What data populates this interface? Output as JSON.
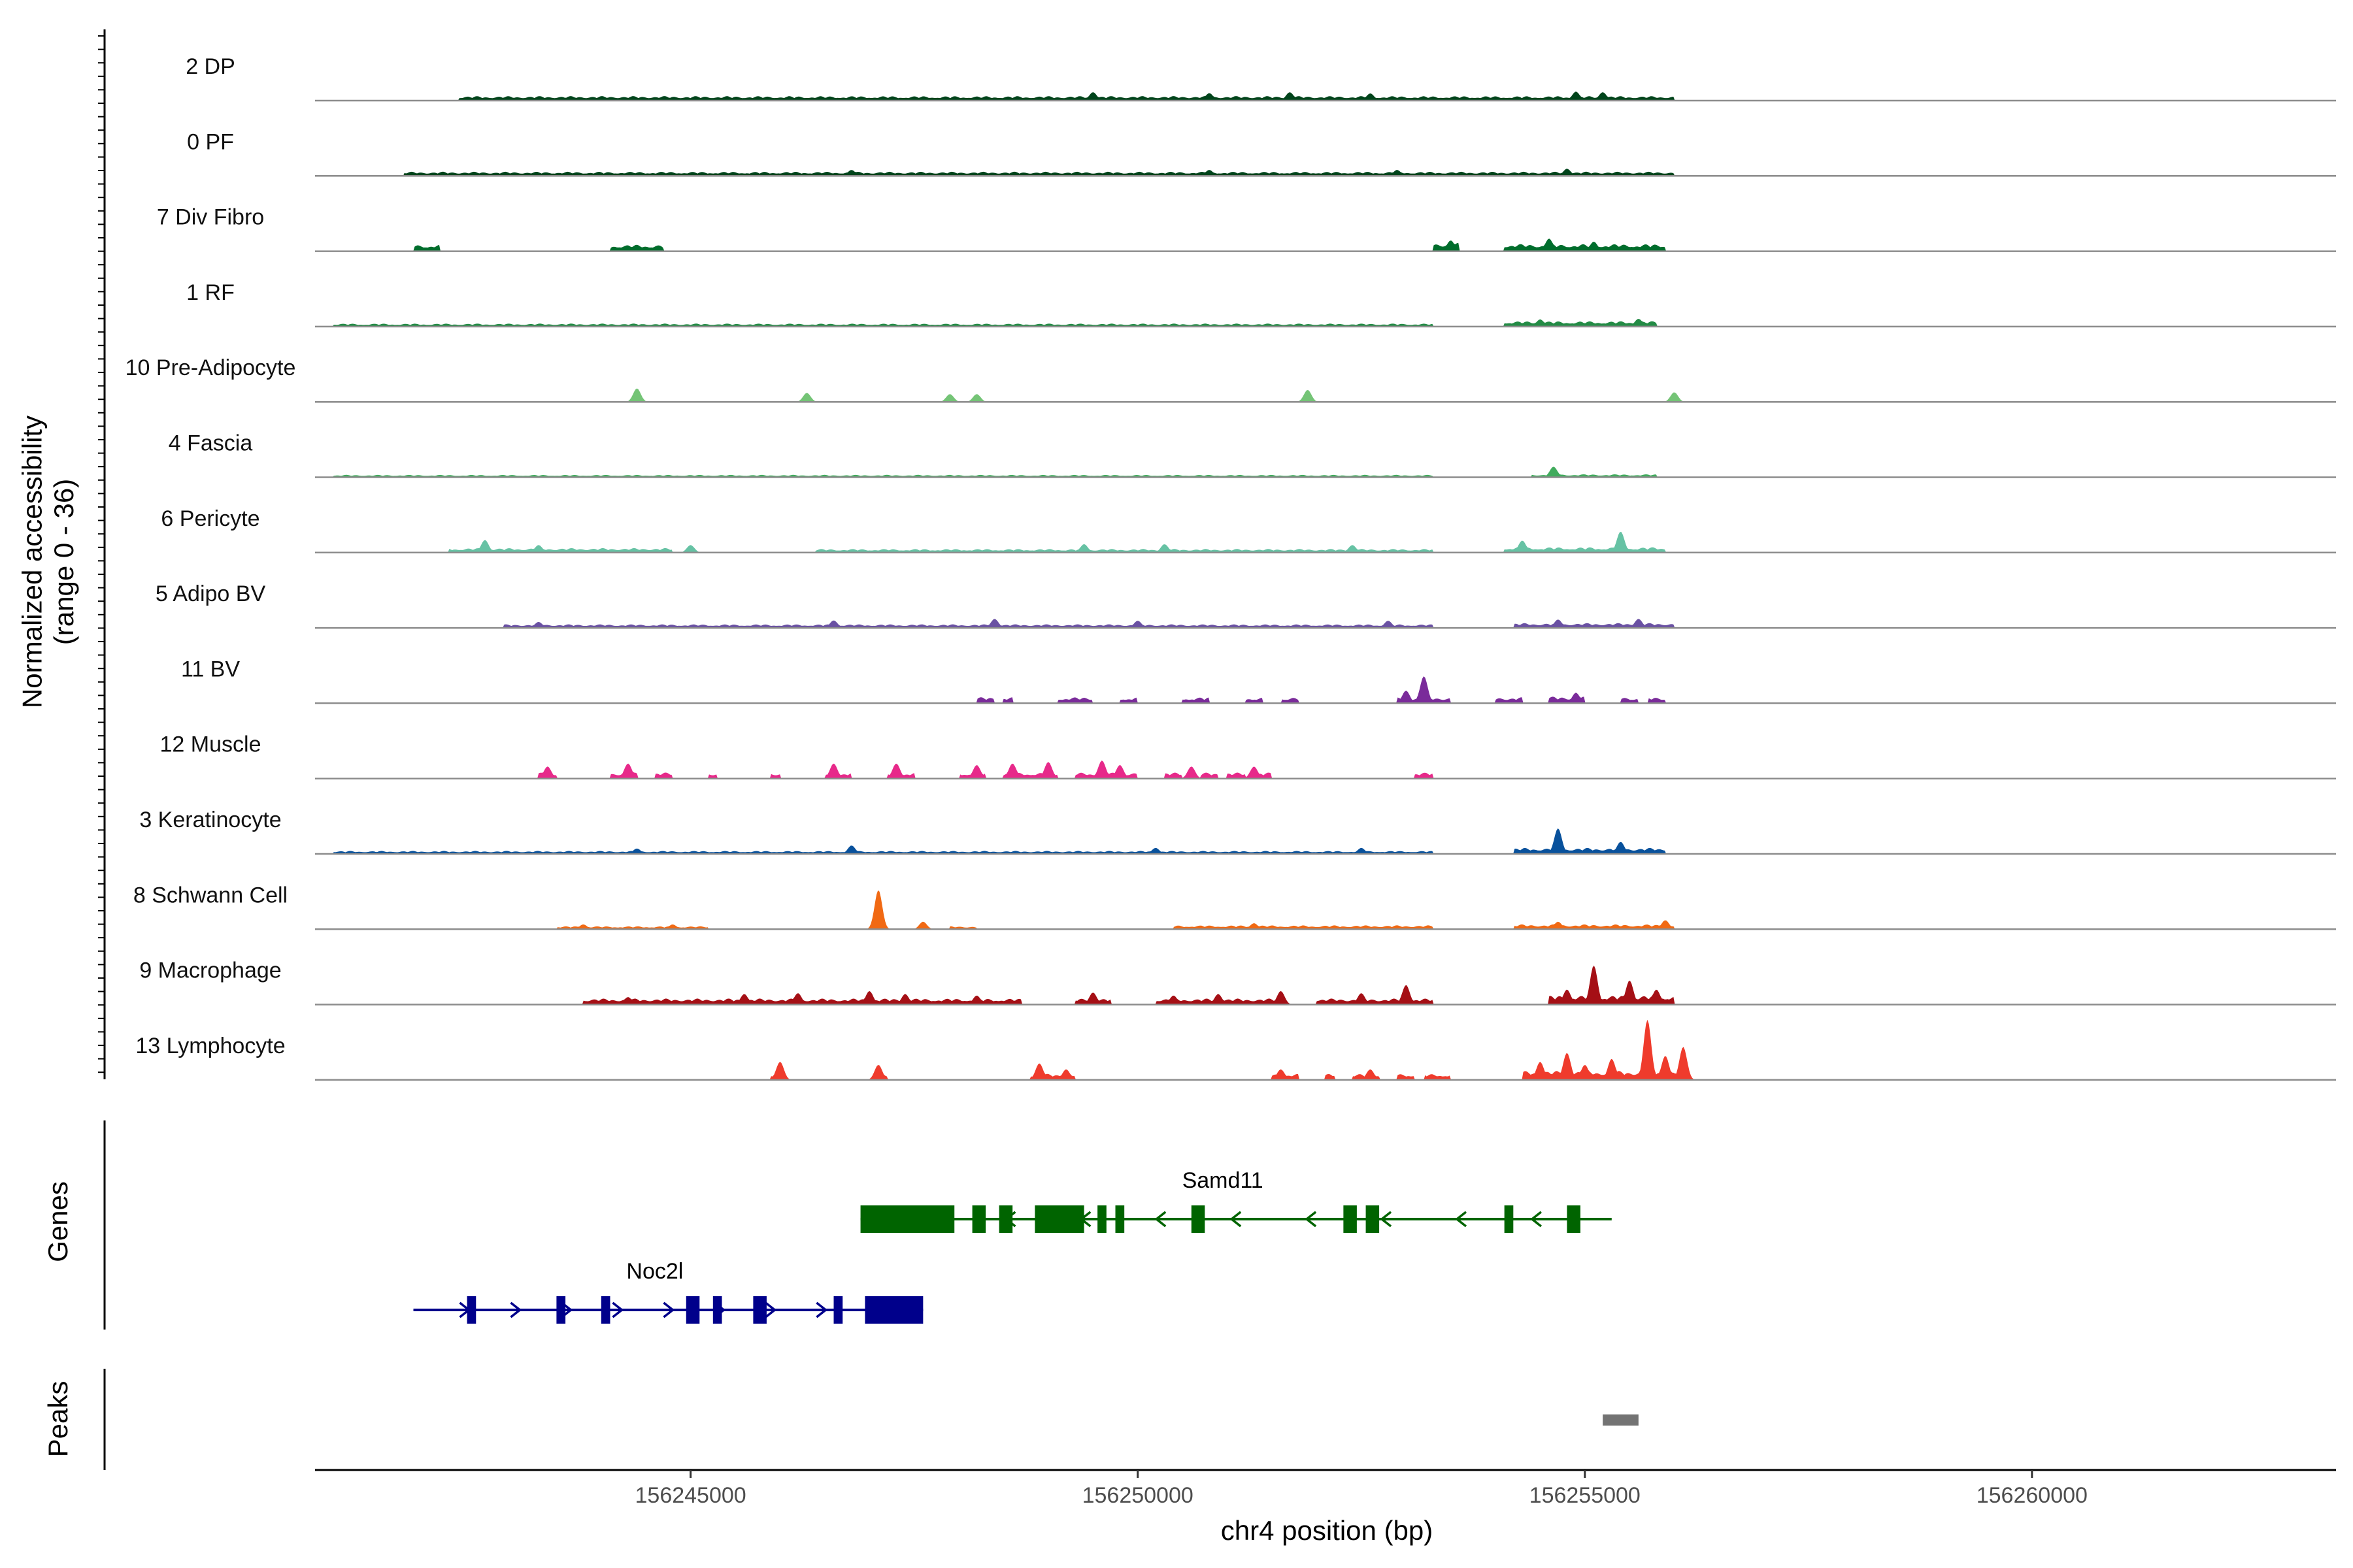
{
  "chart_data": {
    "type": "coverage",
    "ylabel": "Normalized accessibility\n(range 0 - 36)",
    "xlabel": "chr4 position (bp)",
    "xlim": [
      156240800,
      156263400
    ],
    "ymax": 36,
    "xticks": [
      156245000,
      156250000,
      156255000,
      156260000
    ],
    "xtick_labels": [
      "156245000",
      "156250000",
      "156255000",
      "156260000"
    ],
    "tracks": [
      {
        "name": "2 DP",
        "color": "#00441b",
        "segments": [
          [
            156242400,
            156256000,
            1.5
          ]
        ],
        "peaks": [
          [
            156249500,
            2.8
          ],
          [
            156250800,
            2.5
          ],
          [
            156251700,
            2.8
          ],
          [
            156252600,
            2.4
          ],
          [
            156254900,
            3.0
          ],
          [
            156255200,
            2.8
          ]
        ]
      },
      {
        "name": "0 PF",
        "color": "#00441b",
        "segments": [
          [
            156241800,
            156256000,
            1.4
          ]
        ],
        "peaks": [
          [
            156246800,
            2.0
          ],
          [
            156250800,
            2.0
          ],
          [
            156252900,
            2.0
          ],
          [
            156254800,
            2.4
          ]
        ]
      },
      {
        "name": "7 Div Fibro",
        "color": "#006d2c",
        "segments": [
          [
            156241900,
            156242200,
            2.2
          ],
          [
            156244100,
            156244700,
            2.2
          ],
          [
            156253300,
            156253600,
            2.8
          ],
          [
            156254100,
            156255900,
            2.4
          ]
        ],
        "peaks": [
          [
            156253500,
            3.6
          ],
          [
            156254600,
            4.2
          ],
          [
            156255100,
            3.2
          ]
        ]
      },
      {
        "name": "1 RF",
        "color": "#238b45",
        "segments": [
          [
            156241000,
            156253300,
            1.0
          ],
          [
            156254100,
            156255800,
            1.8
          ]
        ],
        "peaks": [
          [
            156254500,
            2.4
          ],
          [
            156255600,
            2.6
          ]
        ]
      },
      {
        "name": "10 Pre-Adipocyte",
        "color": "#74c476",
        "segments": [],
        "peaks": [
          [
            156244400,
            4.5
          ],
          [
            156246300,
            3.0
          ],
          [
            156247900,
            2.6
          ],
          [
            156248200,
            2.6
          ],
          [
            156251900,
            4.0
          ],
          [
            156256000,
            3.2
          ]
        ]
      },
      {
        "name": "4 Fascia",
        "color": "#41ab5d",
        "segments": [
          [
            156241000,
            156253300,
            0.8
          ],
          [
            156254400,
            156255800,
            1.0
          ]
        ],
        "peaks": [
          [
            156254650,
            3.5
          ]
        ]
      },
      {
        "name": "6 Pericyte",
        "color": "#66c2a4",
        "segments": [
          [
            156242300,
            156244800,
            1.5
          ],
          [
            156246400,
            156253300,
            1.2
          ],
          [
            156254100,
            156255900,
            1.8
          ]
        ],
        "peaks": [
          [
            156242700,
            4.2
          ],
          [
            156243300,
            2.5
          ],
          [
            156245000,
            2.5
          ],
          [
            156249400,
            2.8
          ],
          [
            156250300,
            2.8
          ],
          [
            156252400,
            2.5
          ],
          [
            156254300,
            4.0
          ],
          [
            156255400,
            7.0
          ]
        ]
      },
      {
        "name": "5 Adipo BV",
        "color": "#6a51a3",
        "segments": [
          [
            156242900,
            156253300,
            1.2
          ],
          [
            156254200,
            156256000,
            1.6
          ]
        ],
        "peaks": [
          [
            156243300,
            2.0
          ],
          [
            156246600,
            2.5
          ],
          [
            156248400,
            3.0
          ],
          [
            156250000,
            2.4
          ],
          [
            156252800,
            2.4
          ],
          [
            156254700,
            2.8
          ],
          [
            156255600,
            3.0
          ]
        ]
      },
      {
        "name": "11 BV",
        "color": "#7a2b9a",
        "segments": [
          [
            156248200,
            156248400,
            2.0
          ],
          [
            156248500,
            156248600,
            2.0
          ],
          [
            156249100,
            156249500,
            2.0
          ],
          [
            156249800,
            156250000,
            2.0
          ],
          [
            156250500,
            156250800,
            2.0
          ],
          [
            156251200,
            156251400,
            2.0
          ],
          [
            156251600,
            156251800,
            2.0
          ],
          [
            156252900,
            156253500,
            2.0
          ],
          [
            156254000,
            156254300,
            2.0
          ],
          [
            156254600,
            156255000,
            2.2
          ],
          [
            156255400,
            156255600,
            2.0
          ],
          [
            156255700,
            156255900,
            2.0
          ]
        ],
        "peaks": [
          [
            156253000,
            4.2
          ],
          [
            156253200,
            9.0
          ],
          [
            156254900,
            3.5
          ]
        ]
      },
      {
        "name": "12 Muscle",
        "color": "#e7298a",
        "segments": [
          [
            156243300,
            156243500,
            2.0
          ],
          [
            156244100,
            156244400,
            2.0
          ],
          [
            156244600,
            156244800,
            2.0
          ],
          [
            156245200,
            156245300,
            2.0
          ],
          [
            156245900,
            156246000,
            2.0
          ],
          [
            156246500,
            156246800,
            2.0
          ],
          [
            156247200,
            156247500,
            2.0
          ],
          [
            156248000,
            156248300,
            2.0
          ],
          [
            156248500,
            156249100,
            2.0
          ],
          [
            156249300,
            156250000,
            2.0
          ],
          [
            156250300,
            156250500,
            2.0
          ],
          [
            156250700,
            156250900,
            2.0
          ],
          [
            156251000,
            156251200,
            2.0
          ],
          [
            156251300,
            156251500,
            2.0
          ],
          [
            156253100,
            156253300,
            2.0
          ]
        ],
        "peaks": [
          [
            156243400,
            4.0
          ],
          [
            156244300,
            5.0
          ],
          [
            156246600,
            5.0
          ],
          [
            156247300,
            5.0
          ],
          [
            156248200,
            4.5
          ],
          [
            156248600,
            5.0
          ],
          [
            156249000,
            5.5
          ],
          [
            156249600,
            6.0
          ],
          [
            156249800,
            4.5
          ],
          [
            156250600,
            4.0
          ],
          [
            156251300,
            4.0
          ]
        ]
      },
      {
        "name": "3 Keratinocyte",
        "color": "#08519c",
        "segments": [
          [
            156241000,
            156253300,
            1.0
          ],
          [
            156254200,
            156255900,
            2.0
          ]
        ],
        "peaks": [
          [
            156244400,
            1.8
          ],
          [
            156246800,
            2.8
          ],
          [
            156250200,
            2.0
          ],
          [
            156252500,
            2.0
          ],
          [
            156254700,
            8.5
          ],
          [
            156255400,
            4.0
          ]
        ]
      },
      {
        "name": "8 Schwann Cell",
        "color": "#f16913",
        "segments": [
          [
            156243500,
            156245200,
            1.0
          ],
          [
            156247900,
            156248200,
            1.0
          ],
          [
            156250400,
            156253300,
            1.3
          ],
          [
            156254200,
            156256000,
            1.6
          ]
        ],
        "peaks": [
          [
            156243800,
            1.6
          ],
          [
            156244800,
            1.6
          ],
          [
            156247100,
            13.0
          ],
          [
            156247600,
            2.5
          ],
          [
            156251300,
            2.0
          ],
          [
            156254700,
            2.5
          ],
          [
            156255900,
            3.0
          ]
        ]
      },
      {
        "name": "9 Macrophage",
        "color": "#a50f15",
        "segments": [
          [
            156243800,
            156248700,
            2.0
          ],
          [
            156249300,
            156249700,
            2.0
          ],
          [
            156250200,
            156251600,
            2.0
          ],
          [
            156252000,
            156253300,
            2.0
          ],
          [
            156254600,
            156256000,
            3.0
          ]
        ],
        "peaks": [
          [
            156244300,
            2.5
          ],
          [
            156245600,
            3.5
          ],
          [
            156246200,
            3.8
          ],
          [
            156247000,
            4.5
          ],
          [
            156247400,
            3.5
          ],
          [
            156248200,
            3.0
          ],
          [
            156249500,
            4.0
          ],
          [
            156250400,
            3.0
          ],
          [
            156250900,
            3.5
          ],
          [
            156251600,
            4.5
          ],
          [
            156252500,
            3.8
          ],
          [
            156253000,
            6.5
          ],
          [
            156254800,
            5.0
          ],
          [
            156255100,
            13.0
          ],
          [
            156255500,
            8.0
          ],
          [
            156255800,
            5.0
          ]
        ]
      },
      {
        "name": "13 Lymphocyte",
        "color": "#ef3b2c",
        "segments": [
          [
            156245900,
            156246000,
            2.0
          ],
          [
            156247100,
            156247200,
            2.0
          ],
          [
            156248800,
            156249300,
            2.0
          ],
          [
            156251500,
            156251800,
            2.0
          ],
          [
            156252100,
            156252200,
            2.0
          ],
          [
            156252400,
            156252700,
            2.0
          ],
          [
            156252900,
            156253100,
            2.0
          ],
          [
            156253200,
            156253500,
            2.0
          ],
          [
            156254300,
            156256100,
            3.0
          ]
        ],
        "peaks": [
          [
            156246000,
            6.0
          ],
          [
            156247100,
            5.0
          ],
          [
            156248900,
            5.5
          ],
          [
            156249200,
            3.5
          ],
          [
            156251600,
            3.5
          ],
          [
            156252600,
            3.5
          ],
          [
            156254500,
            6.0
          ],
          [
            156254800,
            9.0
          ],
          [
            156255000,
            5.0
          ],
          [
            156255300,
            7.0
          ],
          [
            156255700,
            20.0
          ],
          [
            156255900,
            8.0
          ],
          [
            156256100,
            11.0
          ]
        ]
      }
    ],
    "genes_label": "Genes",
    "genes": [
      {
        "name": "Samd11",
        "color": "#006400",
        "strand": "-",
        "start": 156246900,
        "end": 156255300,
        "exons": [
          [
            156246900,
            156247950
          ],
          [
            156248150,
            156248300
          ],
          [
            156248450,
            156248600
          ],
          [
            156248850,
            156249400
          ],
          [
            156249550,
            156249650
          ],
          [
            156249750,
            156249850
          ],
          [
            156250600,
            156250750
          ],
          [
            156252300,
            156252450
          ],
          [
            156252550,
            156252700
          ],
          [
            156254100,
            156254200
          ],
          [
            156254800,
            156254950
          ]
        ]
      },
      {
        "name": "Noc2l",
        "color": "#00008b",
        "strand": "+",
        "start": 156241900,
        "end": 156247600,
        "exons": [
          [
            156242500,
            156242600
          ],
          [
            156243500,
            156243600
          ],
          [
            156244000,
            156244100
          ],
          [
            156244950,
            156245100
          ],
          [
            156245250,
            156245350
          ],
          [
            156245700,
            156245850
          ],
          [
            156246600,
            156246700
          ],
          [
            156246950,
            156247600
          ]
        ]
      }
    ],
    "peaks_label": "Peaks",
    "peak_regions": [
      [
        156255200,
        156255600
      ]
    ],
    "peak_color": "#737373"
  }
}
